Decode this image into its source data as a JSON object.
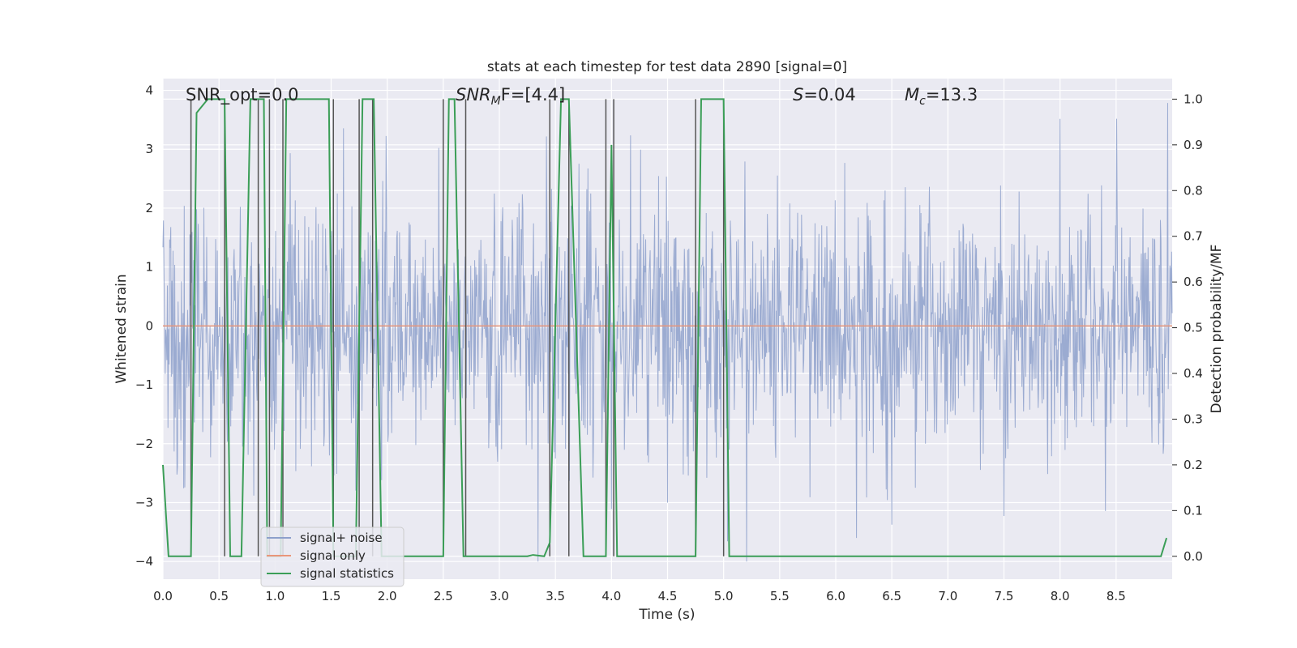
{
  "chart_data": {
    "type": "line",
    "title": "stats at each timestep for test data 2890 [signal=0]",
    "xlabel": "Time (s)",
    "ylabel_left": "Whitened strain",
    "ylabel_right": "Detection probability/MF",
    "xlim": [
      0,
      9.0
    ],
    "ylim_left": [
      -4.3,
      4.2
    ],
    "ylim_right": [
      -0.05,
      1.045
    ],
    "x_ticks": [
      0.0,
      0.5,
      1.0,
      1.5,
      2.0,
      2.5,
      3.0,
      3.5,
      4.0,
      4.5,
      5.0,
      5.5,
      6.0,
      6.5,
      7.0,
      7.5,
      8.0,
      8.5
    ],
    "x_tick_labels": [
      "0.0",
      "0.5",
      "1.0",
      "1.5",
      "2.0",
      "2.5",
      "3.0",
      "3.5",
      "4.0",
      "4.5",
      "5.0",
      "5.5",
      "6.0",
      "6.5",
      "7.0",
      "7.5",
      "8.0",
      "8.5"
    ],
    "y_ticks_left": [
      4,
      3,
      2,
      1,
      0,
      -1,
      -2,
      -3,
      -4
    ],
    "y_tick_labels_left": [
      "4",
      "3",
      "2",
      "1",
      "0",
      "−1",
      "−2",
      "−3",
      "−4"
    ],
    "y_ticks_right": [
      1.0,
      0.9,
      0.8,
      0.7,
      0.6,
      0.5,
      0.4,
      0.3,
      0.2,
      0.1,
      0.0
    ],
    "y_tick_labels_right": [
      "1.0",
      "0.9",
      "0.8",
      "0.7",
      "0.6",
      "0.5",
      "0.4",
      "0.3",
      "0.2",
      "0.1",
      "0.0"
    ],
    "grid": true,
    "legend_position": "lower-left",
    "legend": [
      {
        "label": "signal+ noise",
        "color": "#8da0cb"
      },
      {
        "label": "signal only",
        "color": "#e9967a"
      },
      {
        "label": "signal statistics",
        "color": "#3b9e57"
      }
    ],
    "annotations": {
      "snr_opt": "SNR_opt=0.0",
      "snr_mf_prefix": "SNR",
      "snr_mf_sub": "M",
      "snr_mf_suffix": "F=[4.4]",
      "s_prefix": "S",
      "s_suffix": "=0.04",
      "mc_prefix": "M",
      "mc_sub": "c",
      "mc_suffix": "=13.3"
    },
    "noise_series": {
      "name": "signal+ noise",
      "duration": 9.0,
      "samples": 1800,
      "typical_abs_max": 2.3,
      "range": [
        -4.0,
        3.8
      ],
      "color": "#8da0cb"
    },
    "signal_only_series": {
      "name": "signal only",
      "x": [
        0,
        9.0
      ],
      "y": [
        0,
        0
      ],
      "color": "#e9967a"
    },
    "signal_statistics_series": {
      "name": "signal statistics",
      "color": "#3b9e57",
      "x": [
        0.0,
        0.05,
        0.25,
        0.3,
        0.4,
        0.55,
        0.6,
        0.65,
        0.7,
        0.78,
        0.9,
        0.93,
        1.05,
        1.1,
        1.48,
        1.52,
        1.72,
        1.78,
        1.88,
        1.95,
        2.0,
        2.5,
        2.55,
        2.6,
        2.68,
        2.73,
        3.25,
        3.3,
        3.4,
        3.45,
        3.55,
        3.62,
        3.75,
        3.85,
        3.95,
        4.0,
        4.05,
        4.15,
        4.75,
        4.8,
        5.0,
        5.05,
        5.7,
        7.0,
        8.9,
        8.95
      ],
      "y": [
        0.2,
        0.0,
        0.0,
        0.97,
        1.0,
        1.0,
        0.0,
        0.0,
        0.0,
        1.0,
        1.0,
        0.0,
        0.0,
        1.0,
        1.0,
        0.0,
        0.0,
        1.0,
        1.0,
        0.0,
        0.0,
        0.0,
        1.0,
        1.0,
        0.0,
        0.0,
        0.0,
        0.003,
        0.0,
        0.03,
        1.0,
        1.0,
        0.0,
        0.0,
        0.0,
        0.9,
        0.0,
        0.0,
        0.0,
        1.0,
        1.0,
        0.0,
        0.0,
        0.0,
        0.0,
        0.04
      ]
    },
    "vertical_markers": {
      "color": "#555555",
      "x": [
        0.25,
        0.55,
        0.85,
        0.95,
        1.07,
        1.52,
        1.75,
        1.87,
        2.5,
        2.7,
        3.45,
        3.62,
        3.95,
        4.02,
        4.75,
        5.0
      ]
    }
  }
}
